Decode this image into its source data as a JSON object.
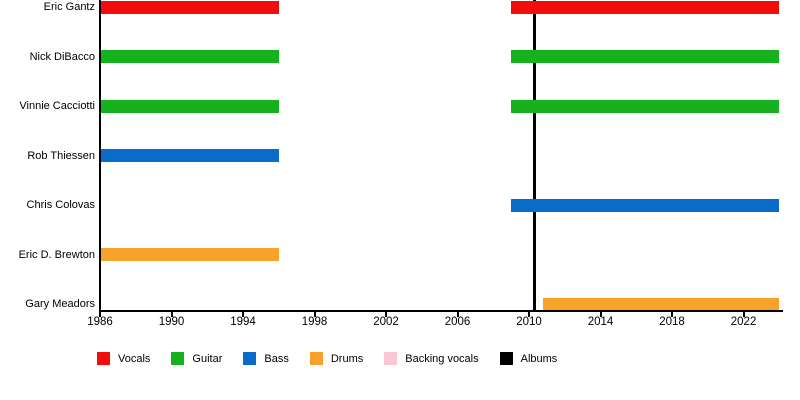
{
  "chart_data": {
    "type": "bar",
    "subtype": "band-members-timeline",
    "orientation": "horizontal",
    "x_axis": {
      "min": 1986,
      "max": 2024.15,
      "ticks": [
        1986,
        1990,
        1994,
        1998,
        2002,
        2006,
        2010,
        2014,
        2018,
        2022
      ]
    },
    "members": [
      {
        "name": "Eric Gantz",
        "role": "Vocals",
        "segments": [
          [
            1986,
            1996
          ],
          [
            2009,
            2024
          ]
        ]
      },
      {
        "name": "Nick DiBacco",
        "role": "Guitar",
        "segments": [
          [
            1986,
            1996
          ],
          [
            2009,
            2024
          ]
        ]
      },
      {
        "name": "Vinnie Cacciotti",
        "role": "Guitar",
        "segments": [
          [
            1986,
            1996
          ],
          [
            2009,
            2024
          ]
        ]
      },
      {
        "name": "Rob Thiessen",
        "role": "Bass",
        "segments": [
          [
            1986,
            1996
          ]
        ]
      },
      {
        "name": "Chris Colovas",
        "role": "Bass",
        "segments": [
          [
            2009,
            2024
          ]
        ]
      },
      {
        "name": "Eric D. Brewton",
        "role": "Drums",
        "segments": [
          [
            1986,
            1996
          ]
        ]
      },
      {
        "name": "Gary Meadors",
        "role": "Drums",
        "segments": [
          [
            2010.8,
            2024
          ]
        ]
      }
    ],
    "album_markers": [
      2010.3
    ],
    "legend": [
      {
        "label": "Vocals",
        "color": "#f20d0d"
      },
      {
        "label": "Guitar",
        "color": "#16b21d"
      },
      {
        "label": "Bass",
        "color": "#0a6cc8"
      },
      {
        "label": "Drums",
        "color": "#f9a22b"
      },
      {
        "label": "Backing vocals",
        "color": "#f9c8d2"
      },
      {
        "label": "Albums",
        "color": "#000000"
      }
    ],
    "layout_hints": {
      "grid": false,
      "legend_position": "bottom",
      "xlabel": "",
      "ylabel": ""
    }
  }
}
